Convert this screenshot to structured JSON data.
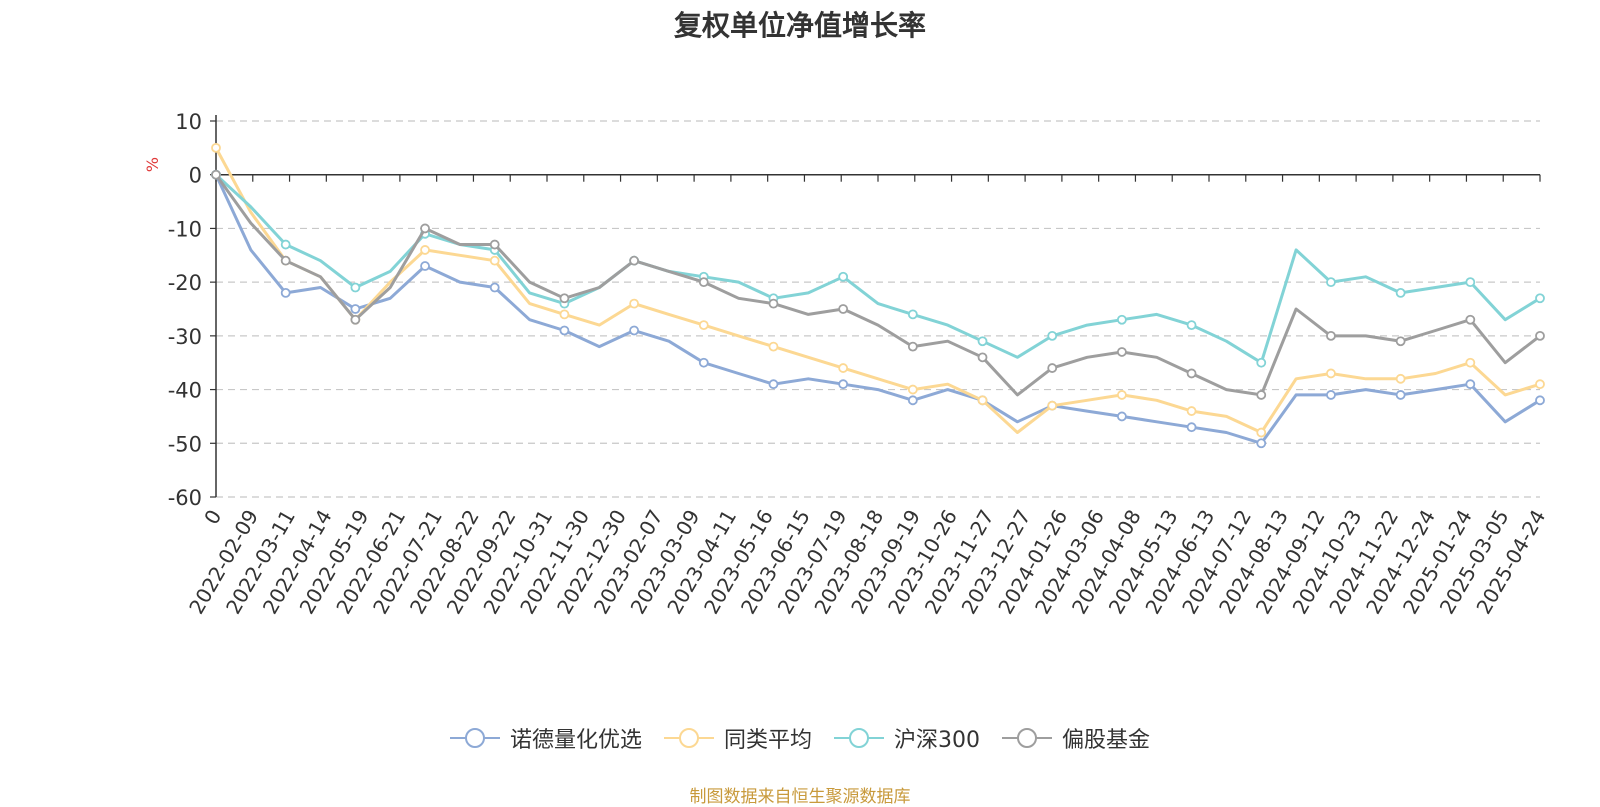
{
  "chart_data": {
    "type": "line",
    "title": "复权单位净值增长率",
    "ylabel": "%",
    "ylim": [
      -60,
      10
    ],
    "yticks": [
      10,
      0,
      -10,
      -20,
      -30,
      -40,
      -50,
      -60
    ],
    "grid": true,
    "legend_position": "bottom",
    "x_tick_labels": [
      "0",
      "2022-02-09",
      "2022-03-11",
      "2022-04-14",
      "2022-05-19",
      "2022-06-21",
      "2022-07-21",
      "2022-08-22",
      "2022-09-22",
      "2022-10-31",
      "2022-11-30",
      "2022-12-30",
      "2023-02-07",
      "2023-03-09",
      "2023-04-11",
      "2023-05-16",
      "2023-06-15",
      "2023-07-19",
      "2023-08-18",
      "2023-09-19",
      "2023-10-26",
      "2023-11-27",
      "2023-12-27",
      "2024-01-26",
      "2024-03-06",
      "2024-04-08",
      "2024-05-13",
      "2024-06-13",
      "2024-07-12",
      "2024-08-13",
      "2024-09-12",
      "2024-10-23",
      "2024-11-22",
      "2024-12-24",
      "2025-01-24",
      "2025-03-05",
      "2025-04-24"
    ],
    "series": [
      {
        "name": "诺德量化优选",
        "color": "#8da9d6",
        "values": [
          0,
          -14,
          -22,
          -21,
          -25,
          -23,
          -17,
          -20,
          -21,
          -27,
          -29,
          -32,
          -29,
          -31,
          -35,
          -37,
          -39,
          -38,
          -39,
          -40,
          -42,
          -40,
          -42,
          -46,
          -43,
          -44,
          -45,
          -46,
          -47,
          -48,
          -50,
          -41,
          -41,
          -40,
          -41,
          -40,
          -39,
          -46,
          -42
        ]
      },
      {
        "name": "同类平均",
        "color": "#fcd893",
        "values": [
          5,
          -7,
          -16,
          -19,
          -27,
          -20,
          -14,
          -15,
          -16,
          -24,
          -26,
          -28,
          -24,
          -26,
          -28,
          -30,
          -32,
          -34,
          -36,
          -38,
          -40,
          -39,
          -42,
          -48,
          -43,
          -42,
          -41,
          -42,
          -44,
          -45,
          -48,
          -38,
          -37,
          -38,
          -38,
          -37,
          -35,
          -41,
          -39
        ]
      },
      {
        "name": "沪深300",
        "color": "#82d3d6",
        "values": [
          0,
          -6,
          -13,
          -16,
          -21,
          -18,
          -11,
          -13,
          -14,
          -22,
          -24,
          -21,
          -16,
          -18,
          -19,
          -20,
          -23,
          -22,
          -19,
          -24,
          -26,
          -28,
          -31,
          -34,
          -30,
          -28,
          -27,
          -26,
          -28,
          -31,
          -35,
          -14,
          -20,
          -19,
          -22,
          -21,
          -20,
          -27,
          -23
        ]
      },
      {
        "name": "偏股基金",
        "color": "#9e9e9e",
        "values": [
          0,
          -9,
          -16,
          -19,
          -27,
          -21,
          -10,
          -13,
          -13,
          -20,
          -23,
          -21,
          -16,
          -18,
          -20,
          -23,
          -24,
          -26,
          -25,
          -28,
          -32,
          -31,
          -34,
          -41,
          -36,
          -34,
          -33,
          -34,
          -37,
          -40,
          -41,
          -25,
          -30,
          -30,
          -31,
          -29,
          -27,
          -35,
          -30
        ]
      }
    ]
  },
  "footer": "制图数据来自恒生聚源数据库"
}
